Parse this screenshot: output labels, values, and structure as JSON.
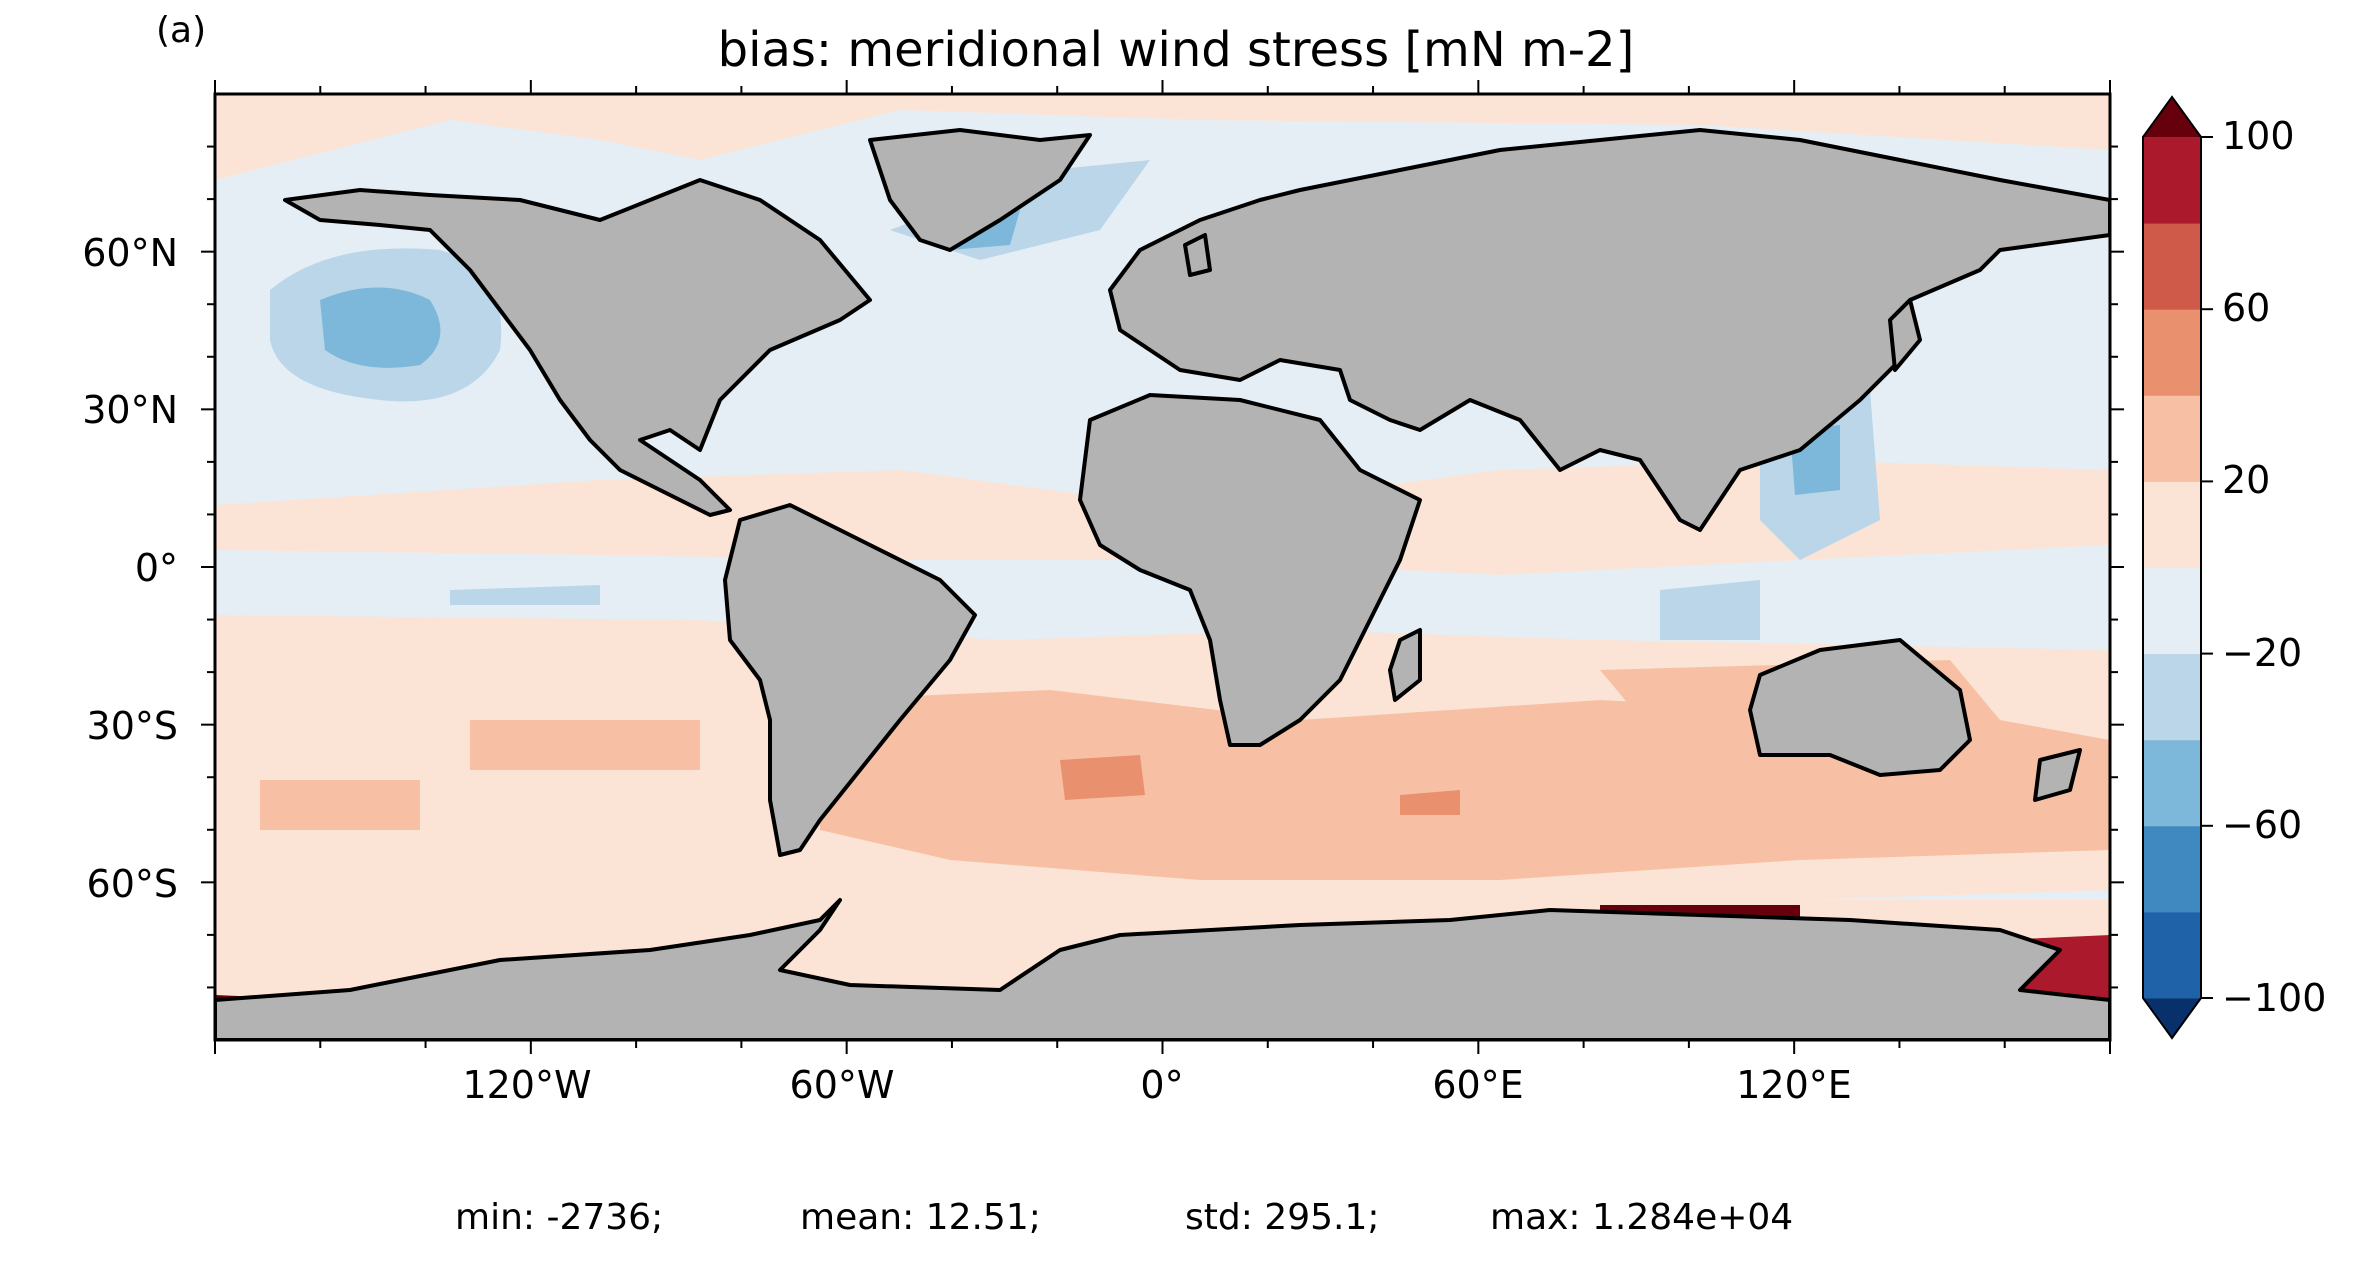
{
  "panel_label": "(a)",
  "title": "bias: meridional wind stress [mN m-2]",
  "map": {
    "projection": "PlateCarree",
    "extent": {
      "lon": [
        -180,
        180
      ],
      "lat": [
        -90,
        90
      ]
    },
    "land_color": "#b3b3b3",
    "coastline_color": "#000000",
    "lat_ticks": [
      "60°N",
      "30°N",
      "0°",
      "30°S",
      "60°S"
    ],
    "lon_ticks": [
      "120°W",
      "60°W",
      "0°",
      "60°E",
      "120°E"
    ]
  },
  "colorbar": {
    "tick_labels": [
      "100",
      "60",
      "20",
      "−20",
      "−60",
      "−100"
    ],
    "levels": [
      -100,
      -80,
      -60,
      -40,
      -20,
      0,
      20,
      40,
      60,
      80,
      100
    ],
    "extend": "both",
    "colors": [
      "#08306b",
      "#1f62a8",
      "#3f88c0",
      "#7db8da",
      "#bad6e8",
      "#e5eef5",
      "#fbe4d6",
      "#f7c0a4",
      "#e9906f",
      "#d05a49",
      "#ab1a2c",
      "#67000d"
    ]
  },
  "stats": {
    "min": "min: -2736;",
    "mean": "mean: 12.51;",
    "std": "std: 295.1;",
    "max": "max: 1.284e+04"
  }
}
